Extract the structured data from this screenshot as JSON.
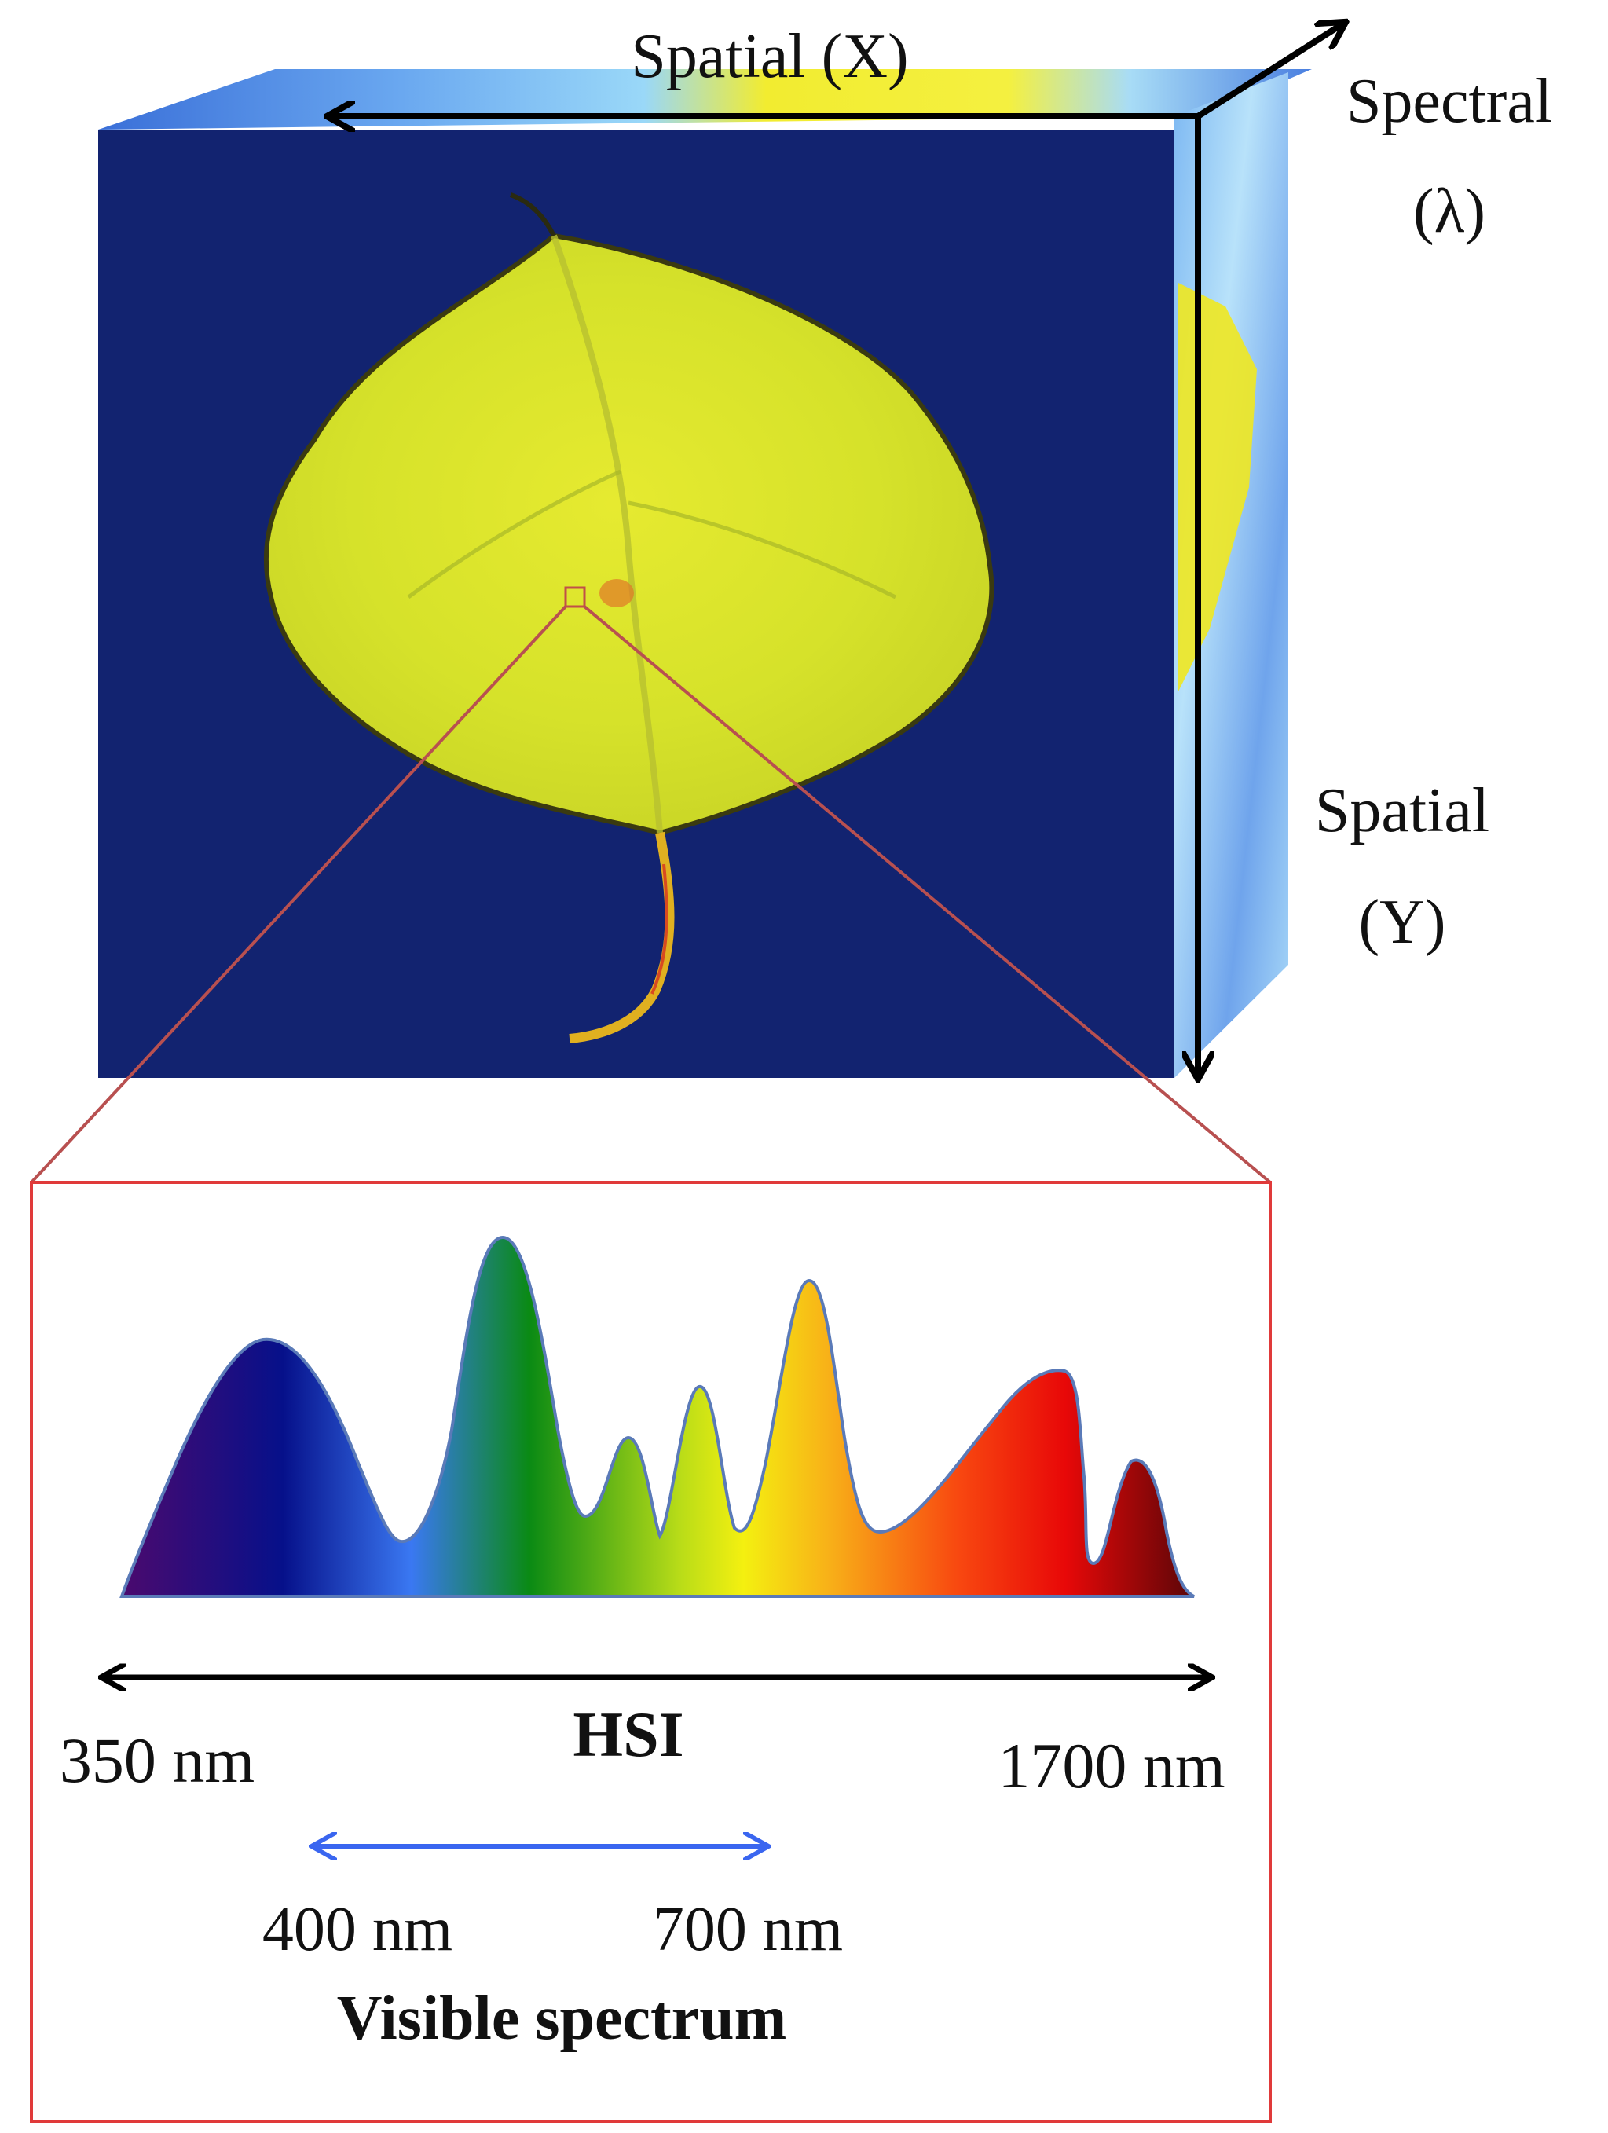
{
  "axes": {
    "spatial_x": "Spatial (X)",
    "spectral_line1": "Spectral",
    "spectral_line2": "(λ)",
    "spatial_y_line1": "Spatial",
    "spatial_y_line2": "(Y)"
  },
  "spectrum": {
    "hsi_label": "HSI",
    "hsi_start": "350 nm",
    "hsi_end": "1700 nm",
    "visible_start": "400 nm",
    "visible_end": "700 nm",
    "visible_label": "Visible spectrum"
  },
  "colors": {
    "cube_background": "#0f1f6b",
    "leaf": "#d8e020",
    "zoom_lines": "#b85050",
    "panel_border": "#e03a3a",
    "hsi_arrow": "#000000",
    "visible_arrow": "#3a66f0"
  }
}
